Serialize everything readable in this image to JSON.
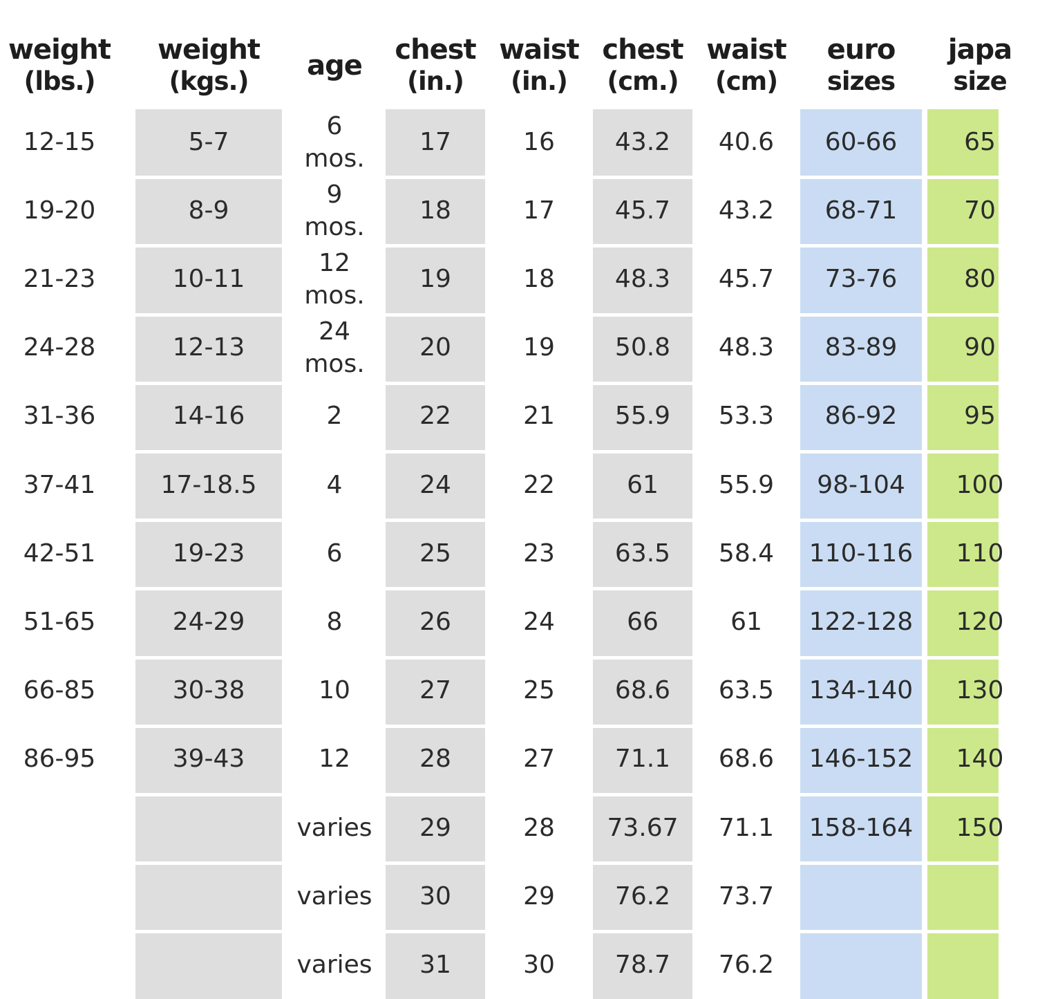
{
  "columns": [
    {
      "key": "weight_lbs",
      "line1": "weight",
      "line2": "(lbs.)",
      "shade": "none"
    },
    {
      "key": "weight_kgs",
      "line1": "weight",
      "line2": "(kgs.)",
      "shade": "gray"
    },
    {
      "key": "age",
      "line1": "age",
      "line2": "",
      "shade": "none"
    },
    {
      "key": "chest_in",
      "line1": "chest",
      "line2": "(in.)",
      "shade": "gray"
    },
    {
      "key": "waist_in",
      "line1": "waist",
      "line2": "(in.)",
      "shade": "none"
    },
    {
      "key": "chest_cm",
      "line1": "chest",
      "line2": "(cm.)",
      "shade": "gray"
    },
    {
      "key": "waist_cm",
      "line1": "waist",
      "line2": "(cm)",
      "shade": "none"
    },
    {
      "key": "euro",
      "line1": "euro",
      "line2": "sizes",
      "shade": "blue"
    },
    {
      "key": "japan",
      "line1": "japa",
      "line2": "size",
      "shade": "green"
    }
  ],
  "rows": [
    {
      "weight_lbs": "12-15",
      "weight_kgs": "5-7",
      "age": "6",
      "age_unit": "mos.",
      "chest_in": "17",
      "waist_in": "16",
      "chest_cm": "43.2",
      "waist_cm": "40.6",
      "euro": "60-66",
      "japan": "65"
    },
    {
      "weight_lbs": "19-20",
      "weight_kgs": "8-9",
      "age": "9",
      "age_unit": "mos.",
      "chest_in": "18",
      "waist_in": "17",
      "chest_cm": "45.7",
      "waist_cm": "43.2",
      "euro": "68-71",
      "japan": "70"
    },
    {
      "weight_lbs": "21-23",
      "weight_kgs": "10-11",
      "age": "12",
      "age_unit": "mos.",
      "chest_in": "19",
      "waist_in": "18",
      "chest_cm": "48.3",
      "waist_cm": "45.7",
      "euro": "73-76",
      "japan": "80"
    },
    {
      "weight_lbs": "24-28",
      "weight_kgs": "12-13",
      "age": "24",
      "age_unit": "mos.",
      "chest_in": "20",
      "waist_in": "19",
      "chest_cm": "50.8",
      "waist_cm": "48.3",
      "euro": "83-89",
      "japan": "90"
    },
    {
      "weight_lbs": "31-36",
      "weight_kgs": "14-16",
      "age": "2",
      "age_unit": "",
      "chest_in": "22",
      "waist_in": "21",
      "chest_cm": "55.9",
      "waist_cm": "53.3",
      "euro": "86-92",
      "japan": "95"
    },
    {
      "weight_lbs": "37-41",
      "weight_kgs": "17-18.5",
      "age": "4",
      "age_unit": "",
      "chest_in": "24",
      "waist_in": "22",
      "chest_cm": "61",
      "waist_cm": "55.9",
      "euro": "98-104",
      "japan": "100"
    },
    {
      "weight_lbs": "42-51",
      "weight_kgs": "19-23",
      "age": "6",
      "age_unit": "",
      "chest_in": "25",
      "waist_in": "23",
      "chest_cm": "63.5",
      "waist_cm": "58.4",
      "euro": "110-116",
      "japan": "110"
    },
    {
      "weight_lbs": "51-65",
      "weight_kgs": "24-29",
      "age": "8",
      "age_unit": "",
      "chest_in": "26",
      "waist_in": "24",
      "chest_cm": "66",
      "waist_cm": "61",
      "euro": "122-128",
      "japan": "120"
    },
    {
      "weight_lbs": "66-85",
      "weight_kgs": "30-38",
      "age": "10",
      "age_unit": "",
      "chest_in": "27",
      "waist_in": "25",
      "chest_cm": "68.6",
      "waist_cm": "63.5",
      "euro": "134-140",
      "japan": "130"
    },
    {
      "weight_lbs": "86-95",
      "weight_kgs": "39-43",
      "age": "12",
      "age_unit": "",
      "chest_in": "28",
      "waist_in": "27",
      "chest_cm": "71.1",
      "waist_cm": "68.6",
      "euro": "146-152",
      "japan": "140"
    },
    {
      "weight_lbs": "",
      "weight_kgs": "",
      "age": "varies",
      "age_unit": "",
      "chest_in": "29",
      "waist_in": "28",
      "chest_cm": "73.67",
      "waist_cm": "71.1",
      "euro": "158-164",
      "japan": "150"
    },
    {
      "weight_lbs": "",
      "weight_kgs": "",
      "age": "varies",
      "age_unit": "",
      "chest_in": "30",
      "waist_in": "29",
      "chest_cm": "76.2",
      "waist_cm": "73.7",
      "euro": "",
      "japan": ""
    },
    {
      "weight_lbs": "",
      "weight_kgs": "",
      "age": "varies",
      "age_unit": "",
      "chest_in": "31",
      "waist_in": "30",
      "chest_cm": "78.7",
      "waist_cm": "76.2",
      "euro": "",
      "japan": ""
    }
  ],
  "colors": {
    "gray_column": "#dedede",
    "blue_column": "#c9dcf3",
    "green_column": "#cde88a",
    "text": "#2b2b2b"
  }
}
